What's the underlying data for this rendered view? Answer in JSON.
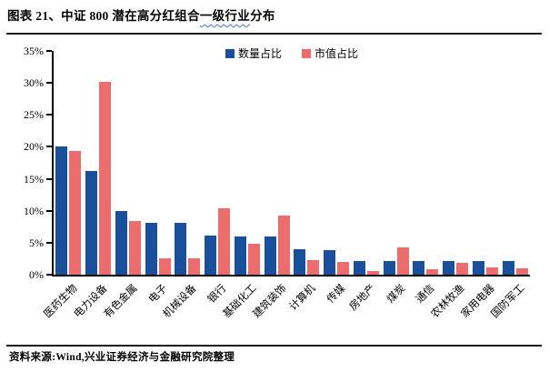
{
  "title": {
    "pre": "图表 21、中证 800 潜在高分红组合",
    "wavy": "一级行业",
    "post": "分布"
  },
  "legend": {
    "items": [
      "数量占比",
      "市值占比"
    ]
  },
  "chart_data": {
    "type": "bar",
    "title": "中证800潜在高分红组合一级行业分布",
    "categories": [
      "医药生物",
      "电力设备",
      "有色金属",
      "电子",
      "机械设备",
      "银行",
      "基础化工",
      "建筑装饰",
      "计算机",
      "传媒",
      "房地产",
      "煤炭",
      "通信",
      "农林牧渔",
      "家用电器",
      "国防军工"
    ],
    "series": [
      {
        "name": "数量占比",
        "color": "#1A4F9C",
        "values": [
          20.0,
          16.2,
          10.0,
          8.1,
          8.1,
          6.1,
          6.0,
          6.0,
          4.0,
          3.9,
          2.1,
          2.1,
          2.1,
          2.1,
          2.1,
          2.1
        ]
      },
      {
        "name": "市值占比",
        "color": "#EC6D6D",
        "values": [
          19.3,
          30.2,
          8.4,
          2.5,
          2.6,
          10.4,
          4.8,
          9.2,
          2.3,
          2.0,
          0.6,
          4.2,
          0.8,
          1.9,
          1.2,
          1.0
        ]
      }
    ],
    "xlabel": "",
    "ylabel": "",
    "ylim": [
      0,
      35
    ],
    "ytick_step": 5,
    "ytick_labels": [
      "0%",
      "5%",
      "10%",
      "15%",
      "20%",
      "25%",
      "30%",
      "35%"
    ],
    "legend_position": "top",
    "grid": false
  },
  "footer": {
    "source": "资料来源:Wind,兴业证券经济与金融研究院整理"
  },
  "colors": {
    "bar_blue": "#1A4F9C",
    "bar_red": "#EC6D6D",
    "squiggle_blue": "#4472C4",
    "rule_dark": "#1A1A1A"
  }
}
